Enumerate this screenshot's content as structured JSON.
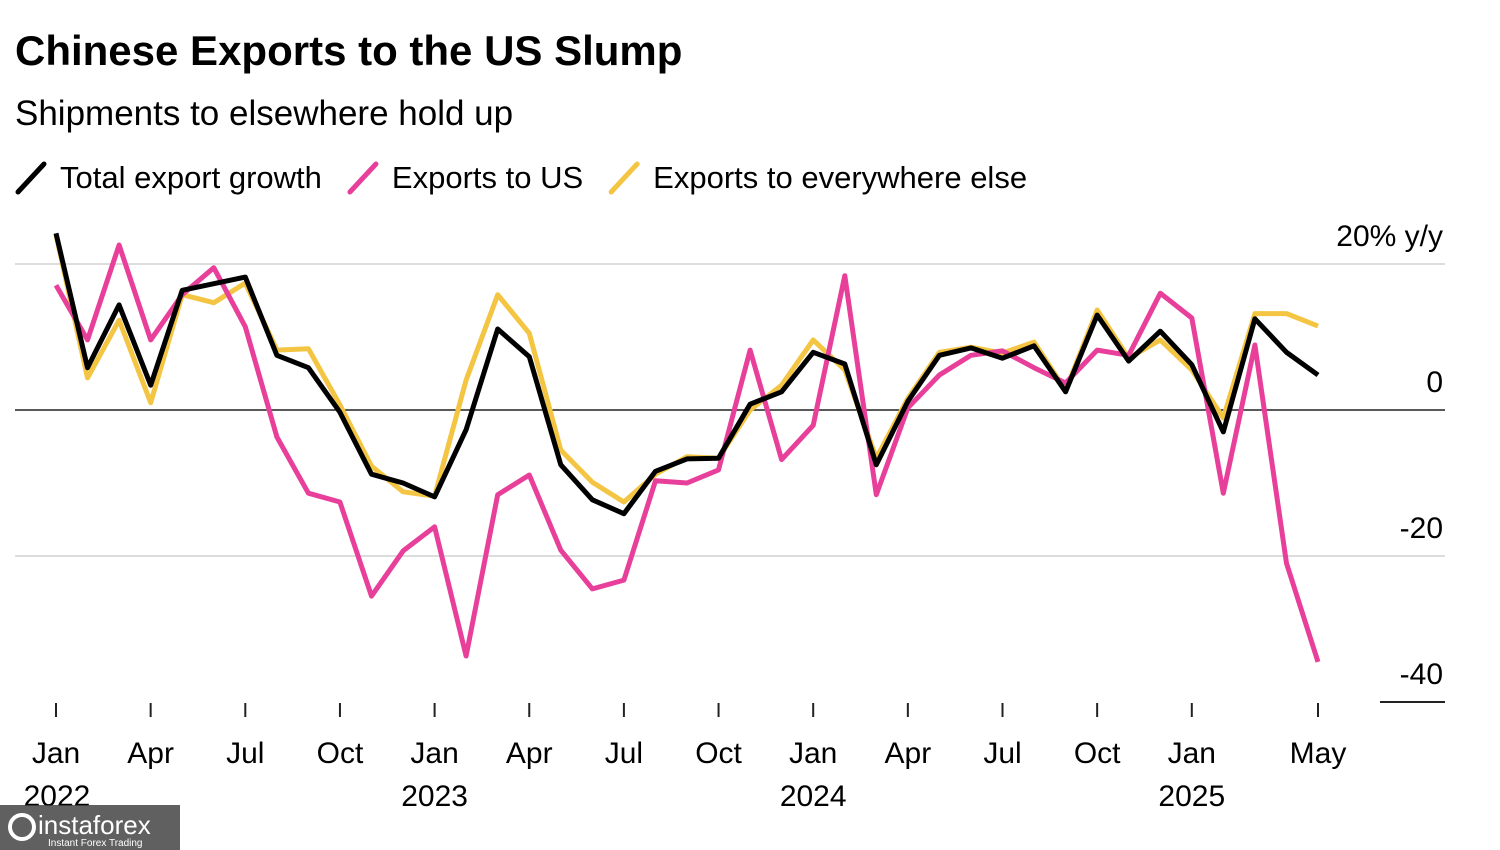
{
  "chart_data": {
    "type": "line",
    "title": "Chinese Exports to the US Slump",
    "subtitle": "Shipments to elsewhere hold up",
    "categories": [
      "Jan",
      null,
      null,
      "Apr",
      null,
      null,
      "Jul",
      null,
      null,
      "Oct",
      null,
      null,
      "Jan",
      null,
      null,
      "Apr",
      null,
      null,
      "Jul",
      null,
      null,
      "Oct",
      null,
      null,
      "Jan",
      null,
      null,
      "Apr",
      null,
      null,
      "Jul",
      null,
      null,
      "Oct",
      null,
      null,
      "Jan",
      null,
      null,
      null,
      "May"
    ],
    "category_years": [
      "2022",
      null,
      null,
      null,
      null,
      null,
      null,
      null,
      null,
      null,
      null,
      null,
      "2023",
      null,
      null,
      null,
      null,
      null,
      null,
      null,
      null,
      null,
      null,
      null,
      "2024",
      null,
      null,
      null,
      null,
      null,
      null,
      null,
      null,
      null,
      null,
      null,
      "2025",
      null,
      null,
      null,
      null
    ],
    "series": [
      {
        "name": "Total export growth",
        "color": "#000000",
        "values": [
          24.2,
          5.8,
          14.4,
          3.4,
          16.4,
          17.3,
          18.2,
          7.5,
          5.8,
          -0.3,
          -8.8,
          -10,
          -11.9,
          -2.7,
          11.1,
          7.3,
          -7.5,
          -12.3,
          -14.2,
          -8.4,
          -6.7,
          -6.6,
          0.8,
          2.5,
          7.9,
          6.3,
          -7.5,
          1.2,
          7.5,
          8.5,
          7.1,
          8.8,
          2.5,
          13,
          6.7,
          10.8,
          6.2,
          -3,
          12.5,
          7.9,
          4.8
        ]
      },
      {
        "name": "Exports to US",
        "color": "#e8409a",
        "values": [
          17.1,
          9.6,
          22.6,
          9.6,
          15.8,
          19.5,
          11.4,
          -3.7,
          -11.4,
          -12.6,
          -25.5,
          -19.3,
          -16,
          -33.7,
          -11.6,
          -8.9,
          -19.2,
          -24.5,
          -23.3,
          -9.7,
          -10,
          -8.2,
          8.2,
          -6.8,
          -2.1,
          18.4,
          -11.6,
          0.3,
          4.8,
          7.5,
          8.1,
          5.8,
          3.7,
          8.2,
          7.5,
          16,
          12.6,
          -11.4,
          8.9,
          -21,
          -34.5
        ]
      },
      {
        "name": "Exports to everywhere else",
        "color": "#f4c542",
        "values": [
          24,
          4.4,
          12.3,
          1,
          15.8,
          14.7,
          17.4,
          8.2,
          8.4,
          0.7,
          -7.7,
          -11.2,
          -11.8,
          4.1,
          15.8,
          10.5,
          -5.5,
          -9.9,
          -12.6,
          -8.8,
          -6.4,
          -6.6,
          0,
          3.4,
          9.6,
          5.5,
          -6.6,
          1.6,
          7.9,
          8.6,
          7.8,
          9.3,
          2.7,
          13.7,
          7.1,
          9.6,
          5.5,
          -1.1,
          13.2,
          13.2,
          11.5
        ]
      }
    ],
    "ylim": [
      -40,
      25
    ],
    "yticks": [
      {
        "value": 20,
        "label": "20% y/y"
      },
      0,
      -20,
      -40
    ],
    "grid": true
  },
  "watermark": {
    "brand": "instaforex",
    "tagline": "Instant Forex Trading"
  }
}
